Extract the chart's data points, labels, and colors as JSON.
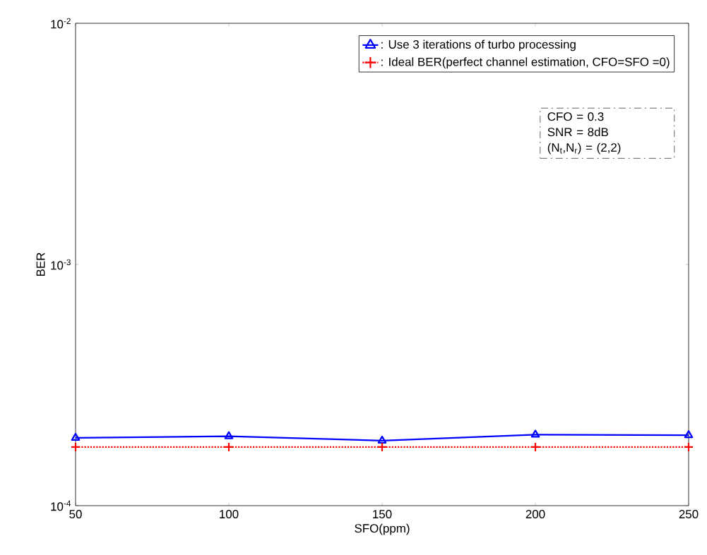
{
  "chart_data": {
    "type": "line",
    "xlabel": "SFO(ppm)",
    "ylabel": "BER",
    "x": [
      50,
      100,
      150,
      200,
      250
    ],
    "series": [
      {
        "name": ": Use 3 iterations of turbo processing",
        "color": "#0000ff",
        "marker": "triangle",
        "line_style": "solid",
        "values": [
          0.000191,
          0.000194,
          0.000186,
          0.000197,
          0.000196
        ]
      },
      {
        "name": ": Ideal BER(perfect channel estimation, CFO=SFO =0)",
        "color": "#ff0000",
        "marker": "cross",
        "line_style": "dotted",
        "values": [
          0.000175,
          0.000175,
          0.000175,
          0.000175,
          0.000175
        ]
      }
    ],
    "xlim": [
      50,
      250
    ],
    "xticks": [
      50,
      100,
      150,
      200,
      250
    ],
    "ylim": [
      0.0001,
      0.01
    ],
    "yticks": [
      {
        "value": 0.0001,
        "label": "10$^{-4}$"
      },
      {
        "value": 0.001,
        "label": "10$^{-3}$"
      },
      {
        "value": 0.01,
        "label": "10$^{-2}$"
      }
    ],
    "log": "y",
    "grid": false,
    "legend": "top right",
    "annotations": [
      "CFO = 0.3",
      "SNR = 8dB",
      "(N$_{t}$,N$_{r}$) = (2,2)"
    ]
  }
}
